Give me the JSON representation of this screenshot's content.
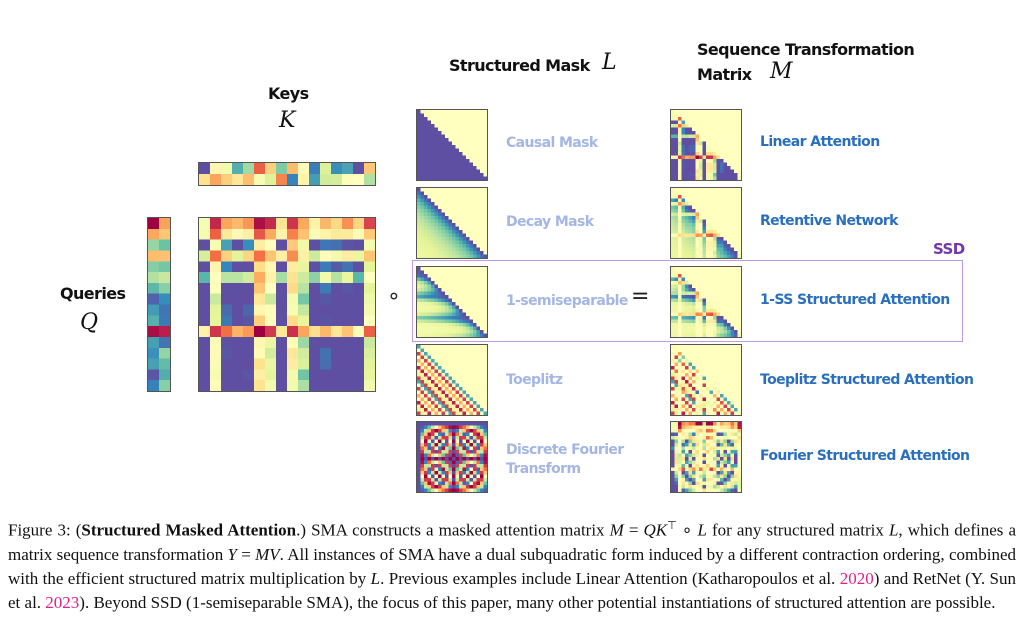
{
  "figure": {
    "keys_label": "Keys",
    "keys_symbol": "K",
    "queries_label": "Queries",
    "queries_symbol": "Q",
    "hadamard_op": "∘",
    "equals_op": "=",
    "mask_header": "Structured Mask",
    "mask_symbol": "L",
    "matrix_header_line1": "Sequence Transformation",
    "matrix_header_line2": "Matrix",
    "matrix_symbol": "M",
    "ssd_label": "SSD",
    "colors": {
      "mask_label": "#a3b6e4",
      "result_label": "#2a6fbd",
      "ssd": "#7437a8",
      "ssd_box": "#bf9be0",
      "citation": "#e0208a"
    },
    "colormap": "Spectral",
    "rows": [
      {
        "mask": "Causal Mask",
        "result": "Linear Attention"
      },
      {
        "mask": "Decay Mask",
        "result": "Retentive Network"
      },
      {
        "mask": "1-semiseparable",
        "result": "1-SS Structured Attention"
      },
      {
        "mask": "Toeplitz",
        "result": "Toeplitz Structured Attention"
      },
      {
        "mask_line1": "Discrete Fourier",
        "mask_line2": "Transform",
        "result": "Fourier Structured Attention"
      }
    ]
  },
  "caption": {
    "segments": [
      "Figure 3: (",
      "Structured Masked Attention",
      ".) SMA constructs a masked attention matrix ",
      "M",
      " = ",
      "QK",
      "⊤",
      " ∘ ",
      "L",
      " for any structured matrix ",
      "L",
      ", which defines a matrix sequence transformation ",
      "Y",
      " = ",
      "MV",
      ". All instances of SMA have a dual subquadratic form induced by a different contraction ordering, combined with the efficient structured matrix multiplication by ",
      "L",
      ". Previous examples include Linear Attention (Katharopoulos et al. ",
      "2020",
      ") and RetNet (Y. Sun et al. ",
      "2023",
      "). Beyond SSD (1-semiseparable SMA), the focus of this paper, many other potential instantiations of structured attention are possible."
    ]
  }
}
